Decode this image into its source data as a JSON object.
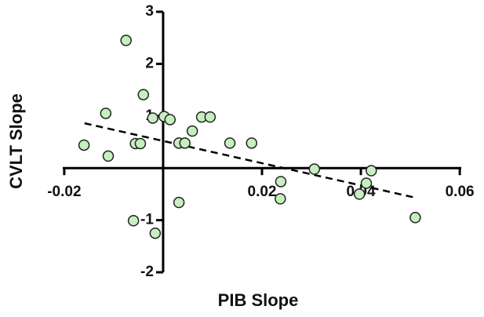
{
  "chart_data": {
    "type": "scatter",
    "x_label": "PIB Slope",
    "y_label": "CVLT Slope",
    "color": "#c6efbf",
    "x": [
      -0.016,
      -0.0111,
      -0.0116,
      -0.0075,
      -0.0056,
      -0.0046,
      -0.004,
      -0.0021,
      0.0002,
      0.0014,
      0.0032,
      0.0044,
      0.0059,
      0.0078,
      0.0095,
      0.0135,
      0.0179,
      -0.006,
      -0.0016,
      0.0032,
      0.0238,
      0.0237,
      0.0306,
      0.0397,
      0.0411,
      0.0421,
      0.051
    ],
    "y": [
      0.44,
      0.23,
      1.05,
      2.45,
      0.47,
      0.47,
      1.41,
      0.96,
      0.99,
      0.93,
      0.48,
      0.48,
      0.71,
      0.98,
      0.98,
      0.48,
      0.48,
      -1.01,
      -1.25,
      -0.66,
      -0.26,
      -0.59,
      -0.02,
      -0.5,
      -0.29,
      -0.05,
      -0.95
    ],
    "trend_line": {
      "x": [
        -0.0159,
        0.0511
      ],
      "y": [
        0.86,
        -0.57
      ]
    },
    "xlim": [
      -0.0203,
      0.0603
    ],
    "ylim": [
      -2,
      3
    ],
    "xticks": [
      -0.02,
      0.02,
      0.04,
      0.06
    ],
    "yticks": [
      -2,
      -1,
      1,
      2,
      3
    ]
  }
}
